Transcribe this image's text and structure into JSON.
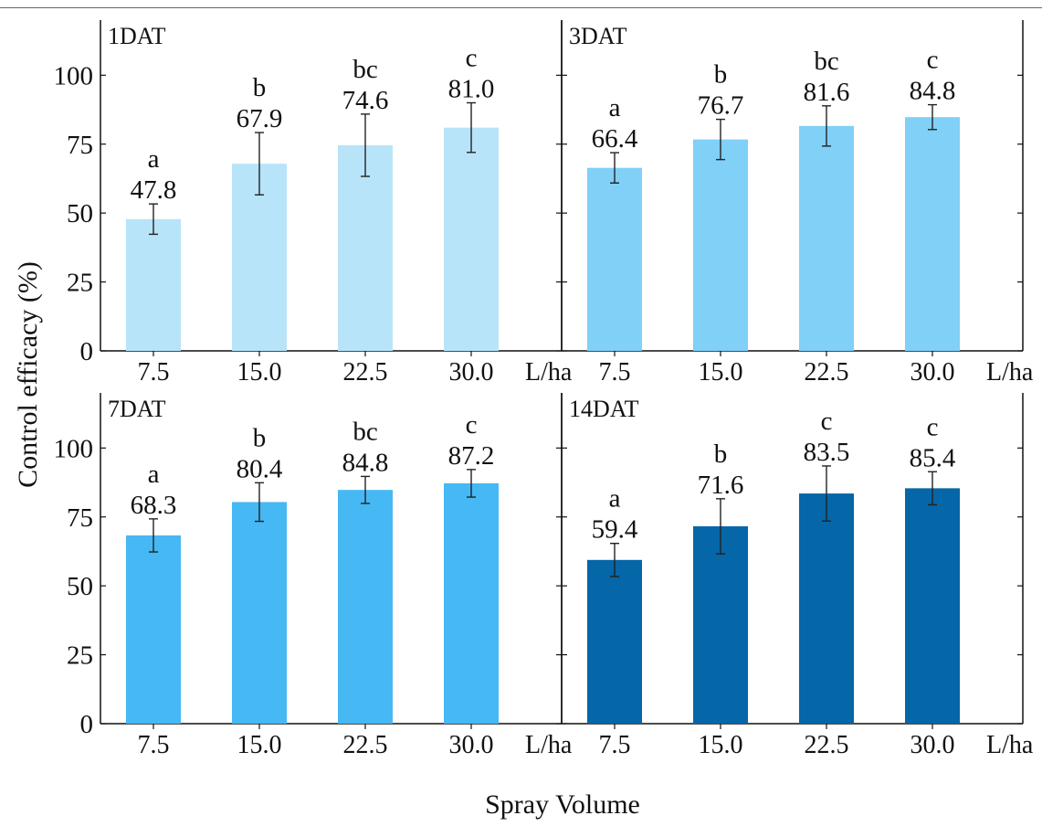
{
  "figure": {
    "ylabel": "Control efficacy (%)",
    "xlabel": "Spray Volume"
  },
  "chart_data": [
    {
      "type": "bar",
      "panel_label": "1DAT",
      "categories": [
        "7.5",
        "15.0",
        "22.5",
        "30.0"
      ],
      "x_unit": "L/ha",
      "values": [
        47.8,
        67.9,
        74.6,
        81.0
      ],
      "errors": [
        5.5,
        11.3,
        11.3,
        9.0
      ],
      "value_labels": [
        "47.8",
        "67.9",
        "74.6",
        "81.0"
      ],
      "significance": [
        "a",
        "b",
        "bc",
        "c"
      ],
      "ylim": [
        0,
        120
      ],
      "yticks": [
        0,
        25,
        50,
        75,
        100
      ],
      "ytick_labels": [
        "0",
        "25",
        "50",
        "75",
        "100"
      ],
      "bar_color": "#b8e4f9"
    },
    {
      "type": "bar",
      "panel_label": "3DAT",
      "categories": [
        "7.5",
        "15.0",
        "22.5",
        "30.0"
      ],
      "x_unit": "L/ha",
      "values": [
        66.4,
        76.7,
        81.6,
        84.8
      ],
      "errors": [
        5.5,
        7.3,
        7.3,
        4.5
      ],
      "value_labels": [
        "66.4",
        "76.7",
        "81.6",
        "84.8"
      ],
      "significance": [
        "a",
        "b",
        "bc",
        "c"
      ],
      "ylim": [
        0,
        120
      ],
      "yticks": [
        0,
        25,
        50,
        75,
        100
      ],
      "ytick_labels": [],
      "bar_color": "#80d0f7"
    },
    {
      "type": "bar",
      "panel_label": "7DAT",
      "categories": [
        "7.5",
        "15.0",
        "22.5",
        "30.0"
      ],
      "x_unit": "L/ha",
      "values": [
        68.3,
        80.4,
        84.8,
        87.2
      ],
      "errors": [
        6.0,
        7.0,
        4.9,
        5.0
      ],
      "value_labels": [
        "68.3",
        "80.4",
        "84.8",
        "87.2"
      ],
      "significance": [
        "a",
        "b",
        "bc",
        "c"
      ],
      "ylim": [
        0,
        120
      ],
      "yticks": [
        0,
        25,
        50,
        75,
        100
      ],
      "ytick_labels": [
        "0",
        "25",
        "50",
        "75",
        "100"
      ],
      "bar_color": "#46b8f4"
    },
    {
      "type": "bar",
      "panel_label": "14DAT",
      "categories": [
        "7.5",
        "15.0",
        "22.5",
        "30.0"
      ],
      "x_unit": "L/ha",
      "values": [
        59.4,
        71.6,
        83.5,
        85.4
      ],
      "errors": [
        6.0,
        10.0,
        10.0,
        6.0
      ],
      "value_labels": [
        "59.4",
        "71.6",
        "83.5",
        "85.4"
      ],
      "significance": [
        "a",
        "b",
        "c",
        "c"
      ],
      "ylim": [
        0,
        120
      ],
      "yticks": [
        0,
        25,
        50,
        75,
        100
      ],
      "ytick_labels": [],
      "bar_color": "#0566a8"
    }
  ]
}
